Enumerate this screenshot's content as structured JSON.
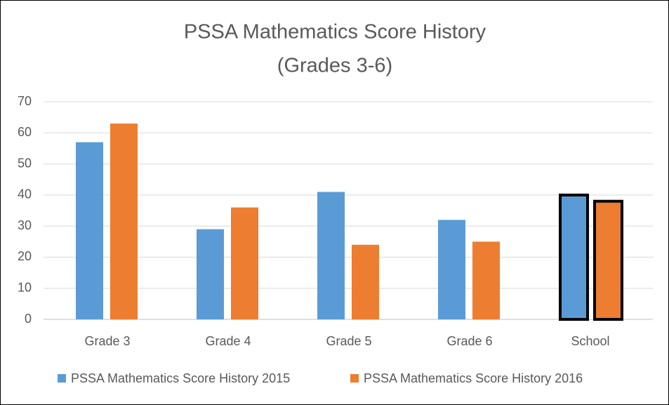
{
  "chart_data": {
    "type": "bar",
    "title": [
      "PSSA Mathematics Score History",
      "(Grades 3-6)"
    ],
    "categories": [
      "Grade 3",
      "Grade 4",
      "Grade 5",
      "Grade 6",
      "School"
    ],
    "series": [
      {
        "name": "PSSA Mathematics Score History 2015",
        "color": "#5b9bd5",
        "values": [
          57,
          29,
          41,
          32,
          40
        ]
      },
      {
        "name": "PSSA Mathematics Score History 2016",
        "color": "#ed7d31",
        "values": [
          63,
          36,
          24,
          25,
          38
        ]
      }
    ],
    "outlined_categories": [
      4
    ],
    "outline_color": "#000000",
    "ylim": [
      0,
      70
    ],
    "yticks": [
      0,
      10,
      20,
      30,
      40,
      50,
      60,
      70
    ],
    "grid": true,
    "legend": "bottom"
  }
}
